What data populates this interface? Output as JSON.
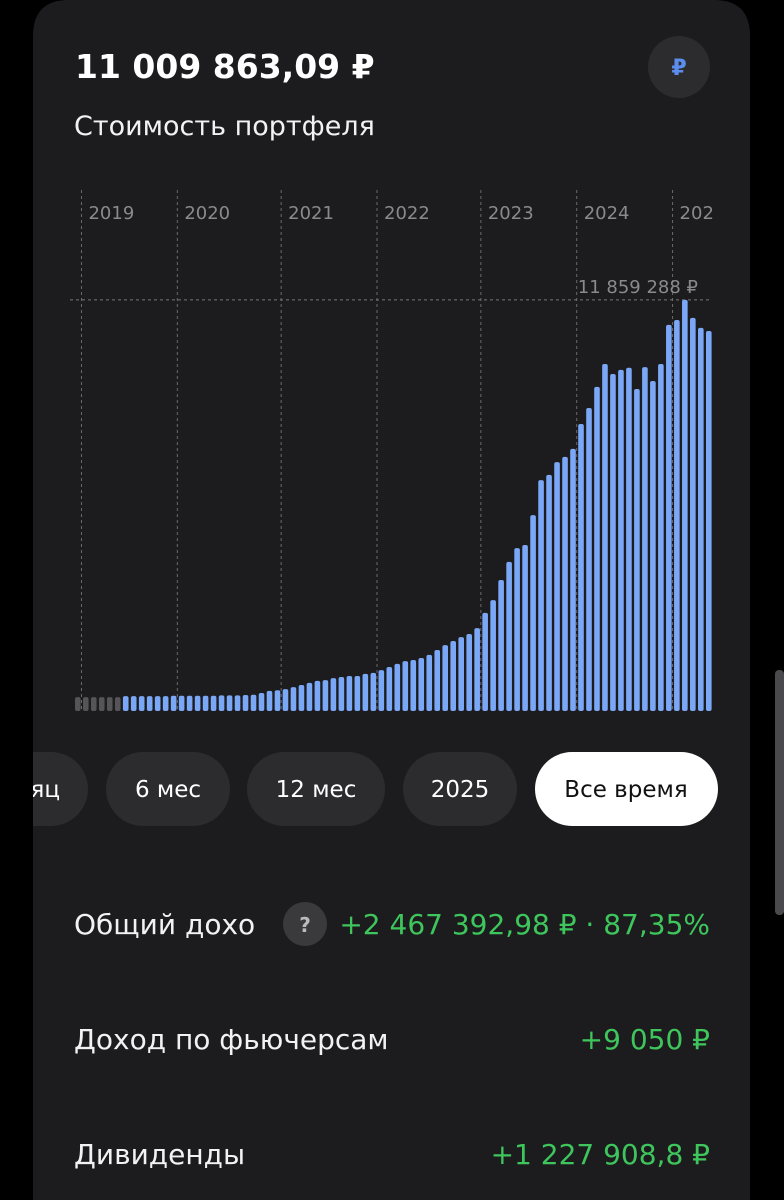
{
  "header": {
    "amount": "11 009 863,09 ₽",
    "subtitle": "Стоимость портфеля",
    "currency_button": "₽"
  },
  "chart_data": {
    "type": "bar",
    "categories": [
      null,
      "2019",
      null,
      null,
      null,
      null,
      null,
      null,
      null,
      null,
      null,
      null,
      null,
      "2020",
      null,
      null,
      null,
      null,
      null,
      null,
      null,
      null,
      null,
      null,
      null,
      null,
      "2021",
      null,
      null,
      null,
      null,
      null,
      null,
      null,
      null,
      null,
      null,
      null,
      "2022",
      null,
      null,
      null,
      null,
      null,
      null,
      null,
      null,
      null,
      null,
      null,
      null,
      "2023",
      null,
      null,
      null,
      null,
      null,
      null,
      null,
      null,
      null,
      null,
      null,
      "2024",
      null,
      null,
      null,
      null,
      null,
      null,
      null,
      null,
      null,
      null,
      null,
      "202",
      null,
      null,
      null,
      null
    ],
    "series": [
      {
        "color": "#555558",
        "values": [
          400000,
          400000,
          400000,
          400000,
          400000,
          400000,
          null,
          null,
          null,
          null,
          null,
          null,
          null,
          null,
          null,
          null,
          null,
          null,
          null,
          null,
          null,
          null,
          null,
          null,
          null,
          null,
          null,
          null,
          null,
          null,
          null,
          null,
          null,
          null,
          null,
          null,
          null,
          null,
          null,
          null,
          null,
          null,
          null,
          null,
          null,
          null,
          null,
          null,
          null,
          null,
          null,
          null,
          null,
          null,
          null,
          null,
          null,
          null,
          null,
          null,
          null,
          null,
          null,
          null,
          null,
          null,
          null,
          null,
          null,
          null,
          null,
          null,
          null,
          null,
          null,
          null,
          null,
          null,
          null,
          null
        ]
      },
      {
        "color": "#7aa8f7",
        "values": [
          null,
          null,
          null,
          null,
          null,
          null,
          430000,
          430000,
          430000,
          430000,
          430000,
          430000,
          440000,
          440000,
          440000,
          440000,
          440000,
          440000,
          450000,
          450000,
          450000,
          460000,
          470000,
          520000,
          580000,
          600000,
          630000,
          690000,
          750000,
          810000,
          870000,
          890000,
          950000,
          980000,
          1010000,
          1010000,
          1070000,
          1100000,
          1180000,
          1270000,
          1360000,
          1440000,
          1470000,
          1530000,
          1620000,
          1760000,
          1900000,
          2020000,
          2130000,
          2220000,
          2390000,
          2830000,
          3200000,
          3780000,
          4300000,
          4700000,
          4790000,
          5650000,
          6660000,
          6810000,
          7180000,
          7330000,
          7560000,
          8280000,
          8740000,
          9350000,
          10010000,
          9720000,
          9840000,
          9900000,
          9290000,
          9920000,
          9520000,
          10010000,
          11140000,
          11280000,
          11859288,
          11340000,
          11050000,
          10960000
        ]
      }
    ],
    "ylim": [
      0,
      12000000
    ],
    "max_line": {
      "value": 11859288,
      "label": "11 859 288 ₽"
    }
  },
  "periods": [
    "яц",
    "6 мес",
    "12 мес",
    "2025",
    "Все время"
  ],
  "stats": [
    {
      "label": "Общий дохо",
      "help": "?",
      "value": "+2 467 392,98 ₽ · 87,35%"
    },
    {
      "label": "Доход по фьючерсам",
      "value": "+9 050 ₽"
    },
    {
      "label": "Дивиденды",
      "value": "+1 227 908,8 ₽"
    }
  ]
}
